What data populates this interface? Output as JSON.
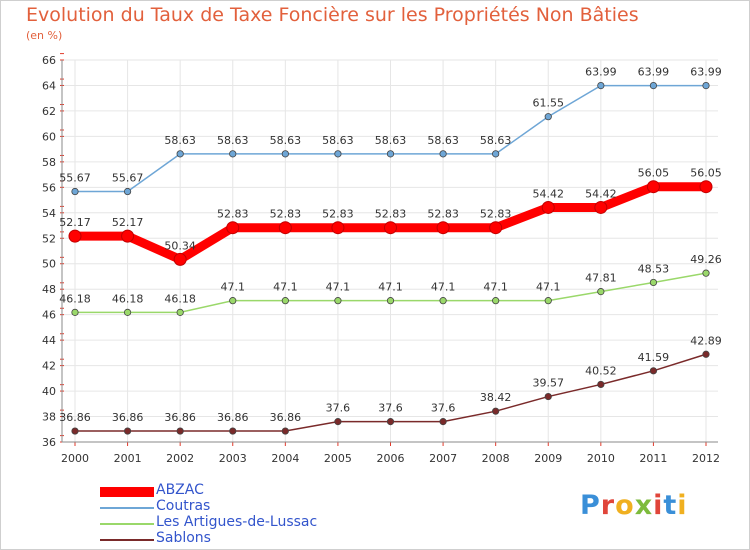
{
  "chart_data": {
    "type": "line",
    "title": "Evolution du Taux de Taxe Foncière sur les Propriétés Non Bâties",
    "ylabel": "(en %)",
    "xlabel": "",
    "ylim": [
      36,
      66
    ],
    "yticks": [
      36,
      38,
      40,
      42,
      44,
      46,
      48,
      50,
      52,
      54,
      56,
      58,
      60,
      62,
      64,
      66
    ],
    "grid": true,
    "legend_position": "bottom-left",
    "categories": [
      "2000",
      "2001",
      "2002",
      "2003",
      "2004",
      "2005",
      "2006",
      "2007",
      "2008",
      "2009",
      "2010",
      "2011",
      "2012"
    ],
    "series": [
      {
        "name": "ABZAC",
        "color": "#ff0000",
        "values": [
          52.17,
          52.17,
          50.34,
          52.83,
          52.83,
          52.83,
          52.83,
          52.83,
          52.83,
          54.42,
          54.42,
          56.05,
          56.05
        ]
      },
      {
        "name": "Coutras",
        "color": "#6ea6d6",
        "values": [
          55.67,
          55.67,
          58.63,
          58.63,
          58.63,
          58.63,
          58.63,
          58.63,
          58.63,
          61.55,
          63.99,
          63.99,
          63.99
        ]
      },
      {
        "name": "Les Artigues-de-Lussac",
        "color": "#9ad86a",
        "values": [
          46.18,
          46.18,
          46.18,
          47.1,
          47.1,
          47.1,
          47.1,
          47.1,
          47.1,
          47.1,
          47.81,
          48.53,
          49.26
        ]
      },
      {
        "name": "Sablons",
        "color": "#7a2a2a",
        "values": [
          36.86,
          36.86,
          36.86,
          36.86,
          36.86,
          37.6,
          37.6,
          37.6,
          38.42,
          39.57,
          40.52,
          41.59,
          42.89
        ]
      }
    ]
  },
  "legend": {
    "items": [
      "ABZAC",
      "Coutras",
      "Les Artigues-de-Lussac",
      "Sablons"
    ]
  },
  "logo": {
    "letters": [
      "P",
      "r",
      "o",
      "x",
      "i",
      "t",
      "i"
    ],
    "colors": [
      "#3a8fd8",
      "#e0453a",
      "#f0b020",
      "#7dbb3c",
      "#e0453a",
      "#3a8fd8",
      "#f0b020"
    ]
  }
}
